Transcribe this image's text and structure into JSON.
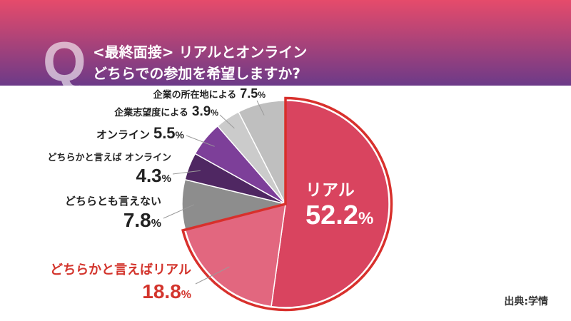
{
  "header": {
    "q_mark": "Q"
  },
  "chart_data": {
    "type": "pie",
    "title": [
      "<最終面接> リアルとオンライン",
      "どちらでの参加を希望しますか?"
    ],
    "unit": "%",
    "slices": [
      {
        "label": "リアル",
        "value": 52.2,
        "color": "#d9445f",
        "highlighted": true
      },
      {
        "label": "どちらかと言えばリアル",
        "value": 18.8,
        "color": "#e2677f",
        "highlighted": true
      },
      {
        "label": "どちらとも言えない",
        "value": 7.8,
        "color": "#8d8d8d",
        "highlighted": false
      },
      {
        "label": "どちらかと言えば オンライン",
        "value": 4.3,
        "color": "#4f2762",
        "highlighted": false
      },
      {
        "label": "オンライン",
        "value": 5.5,
        "color": "#7d3f99",
        "highlighted": false
      },
      {
        "label": "企業志望度による",
        "value": 3.9,
        "color": "#cbcbcb",
        "highlighted": false
      },
      {
        "label": "企業の所在地による",
        "value": 7.5,
        "color": "#bfbfbf",
        "highlighted": false
      }
    ]
  },
  "source": "出典:学情",
  "colors": {
    "header_gradient_top": "#e64b6b",
    "header_gradient_bottom": "#6c3a88",
    "highlight_outline": "#d8302c",
    "highlight_text": "#d3352d",
    "label_text": "#222222",
    "leader_line": "#9a9a9a",
    "slice_separator": "#ffffff"
  }
}
